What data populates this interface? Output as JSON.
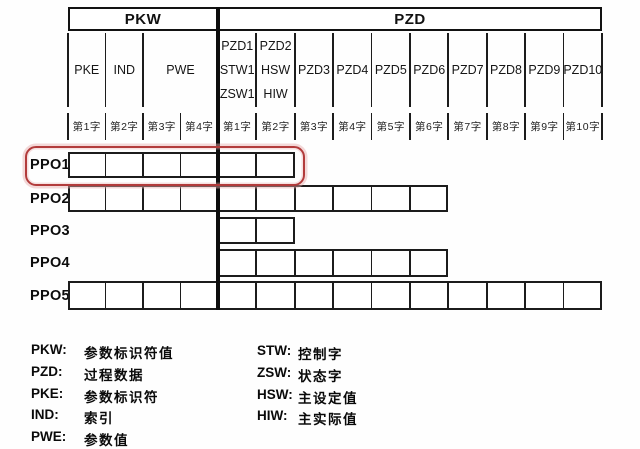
{
  "header": {
    "pkw": "PKW",
    "pzd": "PZD"
  },
  "columns": {
    "pkw": [
      {
        "lines": [
          "PKE"
        ],
        "span": 1
      },
      {
        "lines": [
          "IND"
        ],
        "span": 1
      },
      {
        "lines": [
          "PWE"
        ],
        "span": 2
      }
    ],
    "pzd": [
      {
        "lines": [
          "PZD1",
          "STW1",
          "ZSW1"
        ]
      },
      {
        "lines": [
          "PZD2",
          "HSW",
          "HIW"
        ]
      },
      {
        "lines": [
          "PZD3"
        ]
      },
      {
        "lines": [
          "PZD4"
        ]
      },
      {
        "lines": [
          "PZD5"
        ]
      },
      {
        "lines": [
          "PZD6"
        ]
      },
      {
        "lines": [
          "PZD7"
        ]
      },
      {
        "lines": [
          "PZD8"
        ]
      },
      {
        "lines": [
          "PZD9"
        ]
      },
      {
        "lines": [
          "PZD10"
        ]
      }
    ]
  },
  "word_labels": {
    "pkw": [
      "第1字",
      "第2字",
      "第3字",
      "第4字"
    ],
    "pzd": [
      "第1字",
      "第2字",
      "第3字",
      "第4字",
      "第5字",
      "第6字",
      "第7字",
      "第8字",
      "第9字",
      "第10字"
    ]
  },
  "rows": [
    {
      "label": "PPO1",
      "pkw": true,
      "pzd_words": 2,
      "highlighted": true
    },
    {
      "label": "PPO2",
      "pkw": true,
      "pzd_words": 6,
      "highlighted": false
    },
    {
      "label": "PPO3",
      "pkw": false,
      "pzd_words": 2,
      "highlighted": false
    },
    {
      "label": "PPO4",
      "pkw": false,
      "pzd_words": 6,
      "highlighted": false
    },
    {
      "label": "PPO5",
      "pkw": true,
      "pzd_words": 10,
      "highlighted": false
    }
  ],
  "legend": {
    "left": [
      {
        "term": "PKW:",
        "definition": "参数标识符值"
      },
      {
        "term": "PZD:",
        "definition": "过程数据"
      },
      {
        "term": "PKE:",
        "definition": "参数标识符"
      },
      {
        "term": "IND:",
        "definition": "索引"
      },
      {
        "term": "PWE:",
        "definition": "参数值"
      }
    ],
    "right": [
      {
        "term": "STW:",
        "definition": "控制字"
      },
      {
        "term": "ZSW:",
        "definition": "状态字"
      },
      {
        "term": "HSW:",
        "definition": "主设定值"
      },
      {
        "term": "HIW:",
        "definition": "主实际值"
      }
    ]
  },
  "colors": {
    "highlight_border": "#b23b3b",
    "grid_line": "#1c1c1c"
  }
}
